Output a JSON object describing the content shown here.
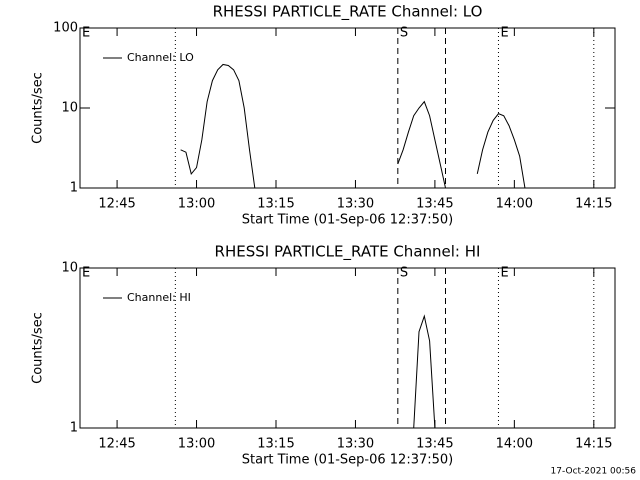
{
  "chart_data": [
    {
      "type": "line",
      "title": "RHESSI PARTICLE_RATE Channel: LO",
      "xlabel": "Start Time (01-Sep-06 12:37:50)",
      "ylabel": "Counts/sec",
      "log_y": true,
      "ylim": [
        1,
        100
      ],
      "yticks": [
        1,
        10,
        100
      ],
      "xlim": [
        "12:38",
        "14:19"
      ],
      "xticks": [
        "12:45",
        "13:00",
        "13:15",
        "13:30",
        "13:45",
        "14:00",
        "14:15"
      ],
      "markers": [
        {
          "x": "12:56",
          "style": "dotted"
        },
        {
          "x": "13:38",
          "style": "dashed"
        },
        {
          "x": "13:47",
          "style": "dashed"
        },
        {
          "x": "13:57",
          "style": "dotted"
        },
        {
          "x": "14:15",
          "style": "dotted"
        }
      ],
      "annotations": [
        {
          "text": "E",
          "x": "12:38"
        },
        {
          "text": "S",
          "x": "13:38"
        },
        {
          "text": "E",
          "x": "13:57"
        }
      ],
      "x": [
        "12:57",
        "12:58",
        "12:59",
        "13:00",
        "13:01",
        "13:02",
        "13:03",
        "13:04",
        "13:05",
        "13:06",
        "13:07",
        "13:08",
        "13:09",
        "13:10",
        "13:11",
        "13:20",
        "13:38",
        "13:39",
        "13:40",
        "13:41",
        "13:42",
        "13:43",
        "13:44",
        "13:45",
        "13:46",
        "13:47",
        "13:50",
        "13:53",
        "13:54",
        "13:55",
        "13:56",
        "13:57",
        "13:58",
        "13:59",
        "14:00",
        "14:01",
        "14:02"
      ],
      "series": [
        {
          "name": "Channel: LO",
          "color": "#000000",
          "values": [
            3,
            2.8,
            1.5,
            1.8,
            4,
            12,
            22,
            30,
            35,
            34,
            30,
            22,
            10,
            3,
            1,
            null,
            2,
            3,
            5,
            8,
            10,
            12,
            8,
            4,
            2,
            1,
            null,
            1.5,
            3,
            5,
            7,
            8.5,
            8,
            6,
            4,
            2.5,
            1
          ]
        }
      ]
    },
    {
      "type": "line",
      "title": "RHESSI PARTICLE_RATE Channel: HI",
      "xlabel": "Start Time (01-Sep-06 12:37:50)",
      "ylabel": "Counts/sec",
      "log_y": true,
      "ylim": [
        1,
        10
      ],
      "yticks": [
        1,
        10
      ],
      "xlim": [
        "12:38",
        "14:19"
      ],
      "xticks": [
        "12:45",
        "13:00",
        "13:15",
        "13:30",
        "13:45",
        "14:00",
        "14:15"
      ],
      "markers": [
        {
          "x": "12:56",
          "style": "dotted"
        },
        {
          "x": "13:38",
          "style": "dashed"
        },
        {
          "x": "13:47",
          "style": "dashed"
        },
        {
          "x": "13:57",
          "style": "dotted"
        },
        {
          "x": "14:15",
          "style": "dotted"
        }
      ],
      "annotations": [
        {
          "text": "E",
          "x": "12:38"
        },
        {
          "text": "S",
          "x": "13:38"
        },
        {
          "text": "E",
          "x": "13:57"
        }
      ],
      "x": [
        "13:41",
        "13:42",
        "13:43",
        "13:44",
        "13:45"
      ],
      "series": [
        {
          "name": "Channel: HI",
          "color": "#000000",
          "values": [
            1,
            4,
            5,
            3.5,
            1
          ]
        }
      ]
    }
  ],
  "footer": "17-Oct-2021 00:56"
}
